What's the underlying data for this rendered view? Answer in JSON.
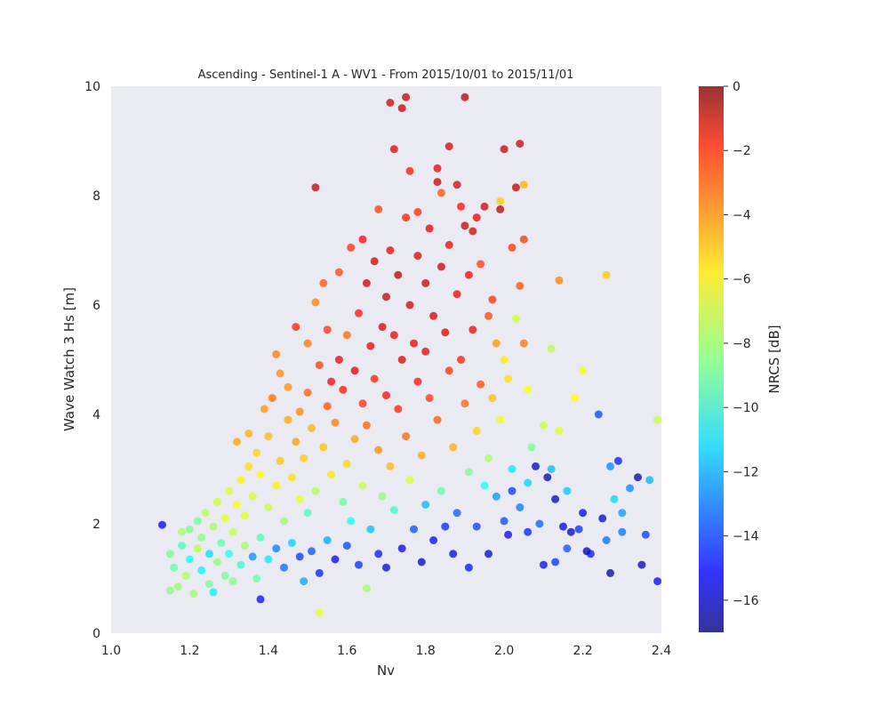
{
  "chart_data": {
    "type": "scatter",
    "title": "Ascending - Sentinel-1 A - WV1 - From 2015/10/01 to 2015/11/01",
    "xlabel": "Nv",
    "ylabel": "Wave Watch 3 Hs [m]",
    "xlim": [
      1.0,
      2.4
    ],
    "ylim": [
      0,
      10
    ],
    "x_ticks": [
      "1.0",
      "1.2",
      "1.4",
      "1.6",
      "1.8",
      "2.0",
      "2.2",
      "2.4"
    ],
    "y_ticks": [
      "0",
      "2",
      "4",
      "6",
      "8",
      "10"
    ],
    "background": "#eaeaf2",
    "grid": false,
    "colormap": "jet",
    "point_alpha": 0.75,
    "colorbar": {
      "label": "NRCS [dB]",
      "range": [
        -17,
        0
      ],
      "ticks": [
        "0",
        "−2",
        "−4",
        "−6",
        "−8",
        "−10",
        "−12",
        "−14",
        "−16"
      ]
    },
    "points": [
      [
        1.13,
        1.98,
        -15.2
      ],
      [
        1.15,
        0.78,
        -8.5
      ],
      [
        1.15,
        1.45,
        -8.8
      ],
      [
        1.16,
        1.2,
        -9.0
      ],
      [
        1.17,
        0.85,
        -8.2
      ],
      [
        1.18,
        1.6,
        -9.5
      ],
      [
        1.18,
        1.85,
        -8.0
      ],
      [
        1.19,
        1.05,
        -7.8
      ],
      [
        1.2,
        1.35,
        -10.5
      ],
      [
        1.2,
        1.9,
        -8.6
      ],
      [
        1.21,
        0.72,
        -8.1
      ],
      [
        1.22,
        1.55,
        -7.5
      ],
      [
        1.22,
        2.05,
        -9.0
      ],
      [
        1.23,
        1.15,
        -10.8
      ],
      [
        1.23,
        1.75,
        -8.4
      ],
      [
        1.24,
        2.2,
        -7.6
      ],
      [
        1.25,
        0.9,
        -8.7
      ],
      [
        1.25,
        1.45,
        -11.2
      ],
      [
        1.26,
        0.75,
        -10.9
      ],
      [
        1.26,
        1.95,
        -7.9
      ],
      [
        1.27,
        1.3,
        -8.3
      ],
      [
        1.27,
        2.4,
        -7.2
      ],
      [
        1.28,
        1.65,
        -9.2
      ],
      [
        1.29,
        1.05,
        -8.8
      ],
      [
        1.29,
        2.1,
        -6.8
      ],
      [
        1.3,
        1.45,
        -10.2
      ],
      [
        1.3,
        2.6,
        -7.0
      ],
      [
        1.31,
        0.95,
        -8.6
      ],
      [
        1.31,
        1.85,
        -7.4
      ],
      [
        1.32,
        2.35,
        -6.5
      ],
      [
        1.32,
        3.5,
        -4.8
      ],
      [
        1.33,
        1.25,
        -9.8
      ],
      [
        1.33,
        2.8,
        -6.2
      ],
      [
        1.34,
        1.6,
        -8.1
      ],
      [
        1.34,
        2.15,
        -6.9
      ],
      [
        1.35,
        3.05,
        -5.8
      ],
      [
        1.35,
        3.65,
        -5.0
      ],
      [
        1.36,
        1.4,
        -12.5
      ],
      [
        1.36,
        2.5,
        -7.1
      ],
      [
        1.37,
        1.0,
        -9.1
      ],
      [
        1.37,
        3.3,
        -5.6
      ],
      [
        1.38,
        1.75,
        -9.4
      ],
      [
        1.38,
        2.9,
        -6.4
      ],
      [
        1.38,
        0.62,
        -14.8
      ],
      [
        1.39,
        4.1,
        -4.6
      ],
      [
        1.4,
        1.35,
        -11.0
      ],
      [
        1.4,
        2.3,
        -7.3
      ],
      [
        1.4,
        3.6,
        -5.2
      ],
      [
        1.41,
        4.3,
        -3.9
      ],
      [
        1.42,
        1.55,
        -12.8
      ],
      [
        1.42,
        2.7,
        -6.1
      ],
      [
        1.42,
        5.1,
        -4.1
      ],
      [
        1.43,
        3.15,
        -5.4
      ],
      [
        1.43,
        4.75,
        -4.4
      ],
      [
        1.44,
        1.2,
        -13.2
      ],
      [
        1.44,
        2.05,
        -8.2
      ],
      [
        1.45,
        3.9,
        -4.9
      ],
      [
        1.45,
        4.5,
        -4.5
      ],
      [
        1.46,
        1.65,
        -11.5
      ],
      [
        1.46,
        2.85,
        -5.9
      ],
      [
        1.47,
        5.6,
        -2.6
      ],
      [
        1.47,
        3.5,
        -4.7
      ],
      [
        1.48,
        1.4,
        -14.0
      ],
      [
        1.48,
        2.45,
        -6.7
      ],
      [
        1.48,
        4.05,
        -4.3
      ],
      [
        1.49,
        0.95,
        -12.2
      ],
      [
        1.49,
        3.2,
        -5.5
      ],
      [
        1.5,
        5.3,
        -4.0
      ],
      [
        1.5,
        2.2,
        -9.5
      ],
      [
        1.5,
        4.4,
        -3.7
      ],
      [
        1.51,
        1.5,
        -13.5
      ],
      [
        1.51,
        3.75,
        -5.1
      ],
      [
        1.52,
        6.05,
        -4.2
      ],
      [
        1.52,
        8.15,
        -1.0
      ],
      [
        1.52,
        2.6,
        -7.7
      ],
      [
        1.53,
        4.9,
        -3.1
      ],
      [
        1.53,
        0.38,
        -6.8
      ],
      [
        1.53,
        1.1,
        -14.5
      ],
      [
        1.54,
        3.4,
        -5.3
      ],
      [
        1.54,
        6.4,
        -3.5
      ],
      [
        1.55,
        4.15,
        -3.4
      ],
      [
        1.55,
        1.7,
        -12.1
      ],
      [
        1.55,
        5.55,
        -2.9
      ],
      [
        1.56,
        2.9,
        -6.0
      ],
      [
        1.56,
        4.6,
        -2.2
      ],
      [
        1.57,
        3.85,
        -4.1
      ],
      [
        1.57,
        1.35,
        -15.0
      ],
      [
        1.58,
        5.0,
        -1.8
      ],
      [
        1.58,
        6.6,
        -3.2
      ],
      [
        1.59,
        2.4,
        -8.9
      ],
      [
        1.59,
        4.45,
        -2.4
      ],
      [
        1.6,
        1.6,
        -13.8
      ],
      [
        1.6,
        3.1,
        -5.7
      ],
      [
        1.6,
        5.45,
        -3.8
      ],
      [
        1.61,
        7.05,
        -2.8
      ],
      [
        1.61,
        2.05,
        -10.4
      ],
      [
        1.62,
        4.8,
        -1.5
      ],
      [
        1.62,
        3.55,
        -4.8
      ],
      [
        1.63,
        5.85,
        -2.3
      ],
      [
        1.63,
        1.25,
        -14.2
      ],
      [
        1.64,
        7.2,
        -2.1
      ],
      [
        1.64,
        4.2,
        -2.9
      ],
      [
        1.64,
        2.7,
        -7.4
      ],
      [
        1.65,
        6.4,
        -1.2
      ],
      [
        1.65,
        3.8,
        -3.6
      ],
      [
        1.65,
        0.82,
        -8.0
      ],
      [
        1.66,
        5.25,
        -1.9
      ],
      [
        1.66,
        1.9,
        -11.7
      ],
      [
        1.67,
        4.65,
        -2.6
      ],
      [
        1.67,
        6.8,
        -1.4
      ],
      [
        1.68,
        3.35,
        -4.4
      ],
      [
        1.68,
        7.75,
        -3.1
      ],
      [
        1.68,
        1.45,
        -14.6
      ],
      [
        1.69,
        5.6,
        -1.6
      ],
      [
        1.69,
        2.5,
        -8.4
      ],
      [
        1.7,
        6.15,
        -1.1
      ],
      [
        1.7,
        4.35,
        -2.2
      ],
      [
        1.7,
        1.2,
        -15.5
      ],
      [
        1.71,
        7.0,
        -1.7
      ],
      [
        1.71,
        9.7,
        -1.3
      ],
      [
        1.71,
        3.05,
        -5.2
      ],
      [
        1.72,
        5.45,
        -1.9
      ],
      [
        1.72,
        8.85,
        -1.6
      ],
      [
        1.72,
        2.25,
        -9.8
      ],
      [
        1.73,
        6.55,
        -1.0
      ],
      [
        1.73,
        4.1,
        -2.7
      ],
      [
        1.74,
        9.6,
        -1.2
      ],
      [
        1.74,
        5.0,
        -1.5
      ],
      [
        1.74,
        1.55,
        -15.2
      ],
      [
        1.75,
        9.8,
        -1.1
      ],
      [
        1.75,
        7.6,
        -2.5
      ],
      [
        1.75,
        3.6,
        -3.8
      ],
      [
        1.76,
        6.0,
        -1.3
      ],
      [
        1.76,
        8.45,
        -2.4
      ],
      [
        1.76,
        2.8,
        -7.0
      ],
      [
        1.77,
        5.3,
        -1.8
      ],
      [
        1.77,
        1.9,
        -13.6
      ],
      [
        1.78,
        6.9,
        -1.5
      ],
      [
        1.78,
        4.6,
        -2.3
      ],
      [
        1.78,
        7.7,
        -2.7
      ],
      [
        1.79,
        3.25,
        -4.9
      ],
      [
        1.79,
        1.3,
        -15.8
      ],
      [
        1.8,
        6.4,
        -1.2
      ],
      [
        1.8,
        5.15,
        -1.7
      ],
      [
        1.8,
        2.35,
        -11.9
      ],
      [
        1.81,
        7.4,
        -1.6
      ],
      [
        1.81,
        4.3,
        -2.9
      ],
      [
        1.82,
        5.8,
        -1.4
      ],
      [
        1.82,
        1.7,
        -14.9
      ],
      [
        1.83,
        8.5,
        -1.8
      ],
      [
        1.83,
        8.25,
        -1.3
      ],
      [
        1.83,
        3.9,
        -3.5
      ],
      [
        1.84,
        8.05,
        -3.4
      ],
      [
        1.84,
        6.7,
        -1.1
      ],
      [
        1.84,
        2.6,
        -9.1
      ],
      [
        1.85,
        5.5,
        -1.6
      ],
      [
        1.85,
        1.95,
        -14.3
      ],
      [
        1.86,
        8.9,
        -1.4
      ],
      [
        1.86,
        7.1,
        -1.9
      ],
      [
        1.86,
        4.8,
        -2.8
      ],
      [
        1.87,
        3.4,
        -5.0
      ],
      [
        1.87,
        1.45,
        -15.3
      ],
      [
        1.88,
        8.2,
        -1.5
      ],
      [
        1.88,
        6.2,
        -1.8
      ],
      [
        1.88,
        2.2,
        -13.4
      ],
      [
        1.89,
        7.8,
        -2.3
      ],
      [
        1.89,
        5.0,
        -2.5
      ],
      [
        1.9,
        7.45,
        -1.2
      ],
      [
        1.9,
        4.2,
        -3.7
      ],
      [
        1.9,
        9.8,
        -0.8
      ],
      [
        1.91,
        6.55,
        -2.1
      ],
      [
        1.91,
        2.95,
        -8.6
      ],
      [
        1.91,
        1.2,
        -14.7
      ],
      [
        1.92,
        7.35,
        -1.4
      ],
      [
        1.92,
        5.55,
        -2.0
      ],
      [
        1.93,
        7.6,
        -1.7
      ],
      [
        1.93,
        3.7,
        -5.6
      ],
      [
        1.93,
        1.95,
        -13.9
      ],
      [
        1.94,
        6.75,
        -3.0
      ],
      [
        1.94,
        4.55,
        -3.3
      ],
      [
        1.95,
        7.8,
        -1.3
      ],
      [
        1.95,
        2.7,
        -10.3
      ],
      [
        1.96,
        5.8,
        -3.2
      ],
      [
        1.96,
        3.2,
        -7.9
      ],
      [
        1.96,
        1.45,
        -15.6
      ],
      [
        1.97,
        6.1,
        -2.8
      ],
      [
        1.97,
        4.3,
        -5.3
      ],
      [
        1.98,
        5.3,
        -4.6
      ],
      [
        1.98,
        2.5,
        -12.4
      ],
      [
        1.99,
        7.9,
        -5.5
      ],
      [
        1.99,
        7.75,
        -0.9
      ],
      [
        1.99,
        3.9,
        -6.7
      ],
      [
        2.0,
        8.85,
        -1.1
      ],
      [
        2.0,
        5.0,
        -6.1
      ],
      [
        2.0,
        2.05,
        -13.7
      ],
      [
        2.01,
        4.65,
        -5.8
      ],
      [
        2.01,
        1.8,
        -15.1
      ],
      [
        2.02,
        7.05,
        -2.9
      ],
      [
        2.02,
        3.0,
        -11.1
      ],
      [
        2.02,
        2.6,
        -14.0
      ],
      [
        2.03,
        8.15,
        -1.0
      ],
      [
        2.03,
        5.75,
        -7.2
      ],
      [
        2.04,
        8.95,
        -1.2
      ],
      [
        2.04,
        6.35,
        -3.4
      ],
      [
        2.04,
        2.3,
        -12.9
      ],
      [
        2.05,
        8.2,
        -5.1
      ],
      [
        2.05,
        7.2,
        -3.0
      ],
      [
        2.05,
        5.3,
        -4.0
      ],
      [
        2.06,
        4.45,
        -6.4
      ],
      [
        2.06,
        2.75,
        -11.4
      ],
      [
        2.06,
        1.85,
        -14.4
      ],
      [
        2.07,
        3.4,
        -8.7
      ],
      [
        2.08,
        3.05,
        -15.9
      ],
      [
        2.09,
        2.0,
        -13.3
      ],
      [
        2.1,
        3.8,
        -7.3
      ],
      [
        2.1,
        1.25,
        -14.8
      ],
      [
        2.11,
        2.85,
        -16.2
      ],
      [
        2.12,
        5.2,
        -7.6
      ],
      [
        2.12,
        3.0,
        -11.8
      ],
      [
        2.13,
        2.45,
        -16.0
      ],
      [
        2.13,
        1.3,
        -14.1
      ],
      [
        2.14,
        6.45,
        -4.2
      ],
      [
        2.14,
        3.7,
        -6.9
      ],
      [
        2.15,
        1.95,
        -15.4
      ],
      [
        2.16,
        2.6,
        -11.6
      ],
      [
        2.16,
        1.55,
        -13.5
      ],
      [
        2.17,
        1.85,
        -16.1
      ],
      [
        2.18,
        4.3,
        -6.3
      ],
      [
        2.19,
        1.9,
        -14.2
      ],
      [
        2.2,
        4.8,
        -6.6
      ],
      [
        2.2,
        2.2,
        -15.0
      ],
      [
        2.21,
        1.5,
        -16.4
      ],
      [
        2.22,
        1.45,
        -14.6
      ],
      [
        2.24,
        4.0,
        -13.8
      ],
      [
        2.25,
        2.1,
        -15.7
      ],
      [
        2.26,
        6.55,
        -5.4
      ],
      [
        2.26,
        1.7,
        -13.1
      ],
      [
        2.27,
        3.05,
        -12.6
      ],
      [
        2.27,
        1.1,
        -16.5
      ],
      [
        2.28,
        2.45,
        -11.3
      ],
      [
        2.29,
        3.15,
        -14.5
      ],
      [
        2.3,
        2.2,
        -12.3
      ],
      [
        2.3,
        1.85,
        -13.0
      ],
      [
        2.32,
        2.65,
        -12.7
      ],
      [
        2.34,
        2.85,
        -16.3
      ],
      [
        2.35,
        1.25,
        -15.8
      ],
      [
        2.36,
        1.8,
        -14.0
      ],
      [
        2.37,
        2.8,
        -11.9
      ],
      [
        2.39,
        3.9,
        -7.4
      ],
      [
        2.39,
        0.95,
        -14.9
      ]
    ]
  }
}
